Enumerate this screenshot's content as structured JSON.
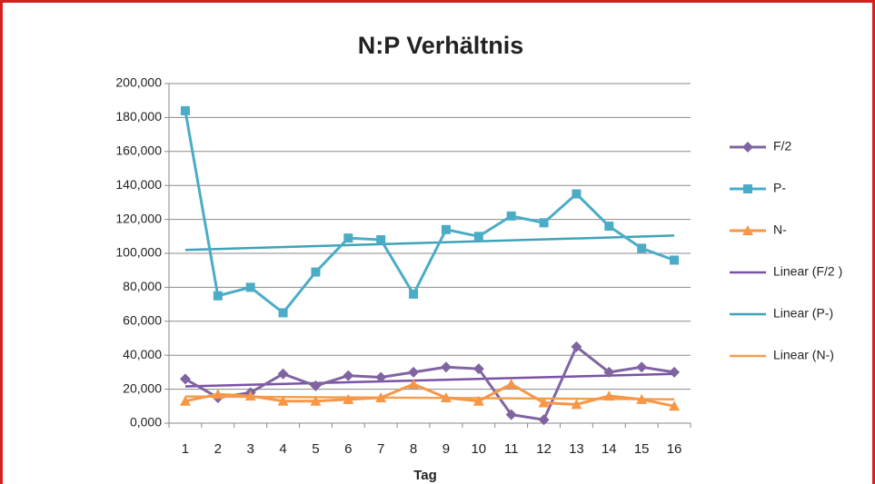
{
  "chart_data": {
    "type": "line",
    "title": "N:P Verhältnis",
    "xlabel": "Tag",
    "categories": [
      1,
      2,
      3,
      4,
      5,
      6,
      7,
      8,
      9,
      10,
      11,
      12,
      13,
      14,
      15,
      16
    ],
    "ylim": [
      0,
      200
    ],
    "yticks": [
      {
        "value": 0,
        "label": "0,000"
      },
      {
        "value": 20,
        "label": "20,000"
      },
      {
        "value": 40,
        "label": "40,000"
      },
      {
        "value": 60,
        "label": "60,000"
      },
      {
        "value": 80,
        "label": "80,000"
      },
      {
        "value": 100,
        "label": "100,000"
      },
      {
        "value": 120,
        "label": "120,000"
      },
      {
        "value": 140,
        "label": "140,000"
      },
      {
        "value": 160,
        "label": "160,000"
      },
      {
        "value": 180,
        "label": "180,000"
      },
      {
        "value": 200,
        "label": "200,000"
      }
    ],
    "grid": true,
    "legend": "right",
    "series": [
      {
        "name": "F/2",
        "color": "#8064a2",
        "marker": "diamond",
        "values": [
          26,
          15,
          18,
          29,
          22,
          28,
          27,
          30,
          33,
          32,
          5,
          2,
          45,
          30,
          33,
          30
        ],
        "trendline": {
          "name": "Linear (F/2 )",
          "color": "#7a52a6"
        }
      },
      {
        "name": "P-",
        "color": "#4bacc6",
        "marker": "square",
        "values": [
          184,
          75,
          80,
          65,
          89,
          109,
          108,
          76,
          114,
          110,
          122,
          118,
          135,
          116,
          103,
          96
        ],
        "trendline": {
          "name": "Linear (P-)",
          "color": "#3fa3b8"
        }
      },
      {
        "name": "N-",
        "color": "#f79646",
        "marker": "triangle",
        "values": [
          13,
          17,
          16,
          13,
          13,
          14,
          15,
          23,
          15,
          13,
          23,
          12,
          11,
          16,
          14,
          10
        ],
        "trendline": {
          "name": "Linear (N-)",
          "color": "#f0a050"
        }
      }
    ]
  }
}
